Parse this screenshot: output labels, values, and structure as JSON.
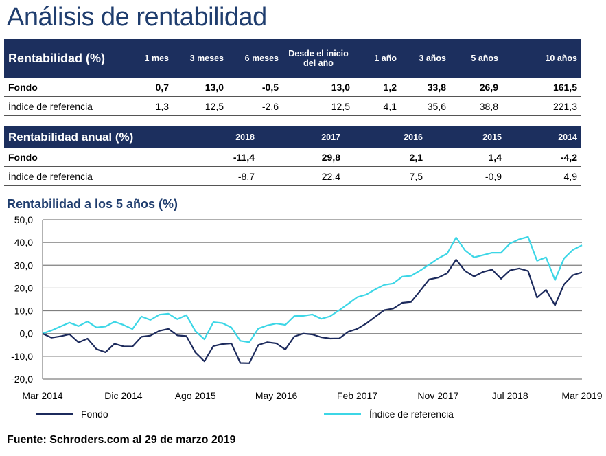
{
  "title": "Análisis de rentabilidad",
  "table1": {
    "header_label": "Rentabilidad (%)",
    "columns": [
      "1 mes",
      "3 meses",
      "6 meses",
      "Desde el inicio del año",
      "1 año",
      "3 años",
      "5 años",
      "10 años"
    ],
    "rows": [
      {
        "label": "Fondo",
        "values": [
          "0,7",
          "13,0",
          "-0,5",
          "13,0",
          "1,2",
          "33,8",
          "26,9",
          "161,5"
        ]
      },
      {
        "label": "Índice de referencia",
        "values": [
          "1,3",
          "12,5",
          "-2,6",
          "12,5",
          "4,1",
          "35,6",
          "38,8",
          "221,3"
        ]
      }
    ]
  },
  "table2": {
    "header_label": "Rentabilidad anual (%)",
    "columns": [
      "2018",
      "2017",
      "2016",
      "2015",
      "2014"
    ],
    "rows": [
      {
        "label": "Fondo",
        "values": [
          "-11,4",
          "29,8",
          "2,1",
          "1,4",
          "-4,2"
        ]
      },
      {
        "label": "Índice de referencia",
        "values": [
          "-8,7",
          "22,4",
          "7,5",
          "-0,9",
          "4,9"
        ]
      }
    ]
  },
  "chart_title": "Rentabilidad a los 5 años (%)",
  "footer": "Fuente: Schroders.com al 29 de marzo 2019",
  "chart_data": {
    "type": "line",
    "title": "Rentabilidad a los 5 años (%)",
    "ylim": [
      -20,
      50
    ],
    "yticks": [
      "-20,0",
      "-10,0",
      "0,0",
      "10,0",
      "20,0",
      "30,0",
      "40,0",
      "50,0"
    ],
    "ytick_values": [
      -20,
      -10,
      0,
      10,
      20,
      30,
      40,
      50
    ],
    "xlabels": [
      "Mar 2014",
      "Dic 2014",
      "Ago 2015",
      "May 2016",
      "Feb 2017",
      "Nov 2017",
      "Jul 2018",
      "Mar 2019"
    ],
    "xlabel_indices": [
      0,
      9,
      17,
      26,
      35,
      44,
      52,
      60
    ],
    "x_count": 61,
    "grid": true,
    "series": [
      {
        "name": "Fondo",
        "color": "#1c2a5c",
        "values": [
          0,
          -1.8,
          -1.2,
          -0.3,
          -3.9,
          -2.2,
          -6.8,
          -8.2,
          -4.5,
          -5.6,
          -5.7,
          -1.4,
          -0.9,
          1.2,
          2.1,
          -0.8,
          -1.1,
          -8.3,
          -12.2,
          -5.5,
          -4.6,
          -4.3,
          -12.9,
          -13,
          -5,
          -3.8,
          -4.3,
          -7,
          -1.3,
          0,
          -0.4,
          -1.6,
          -2.2,
          -2.1,
          0.8,
          2.1,
          4.4,
          7.4,
          10.3,
          11,
          13.5,
          13.9,
          18.8,
          23.8,
          24.6,
          26.5,
          32.5,
          27.5,
          25.1,
          27.1,
          28.1,
          24.1,
          27.8,
          28.6,
          27.5,
          15.8,
          19.2,
          12.4,
          21.6,
          25.7,
          26.9
        ]
      },
      {
        "name": "Índice de referencia",
        "color": "#3cd6e6",
        "values": [
          0,
          1.4,
          3.1,
          4.8,
          3.3,
          5.3,
          2.7,
          3.1,
          5.2,
          3.8,
          2,
          7.5,
          6,
          8.3,
          8.7,
          6.3,
          8.1,
          1.1,
          -2.5,
          5,
          4.6,
          2.7,
          -3.2,
          -3.8,
          2.2,
          3.6,
          4.4,
          3.8,
          7.7,
          7.8,
          8.4,
          6.5,
          7.6,
          10.3,
          13.1,
          16,
          17.1,
          19.4,
          21.4,
          22,
          25,
          25.4,
          27.7,
          30.3,
          33,
          35.1,
          42.2,
          36.5,
          33.5,
          34.5,
          35.5,
          35.5,
          39.6,
          41.4,
          42.5,
          32,
          33.5,
          23.5,
          33,
          36.8,
          38.8
        ]
      }
    ]
  }
}
